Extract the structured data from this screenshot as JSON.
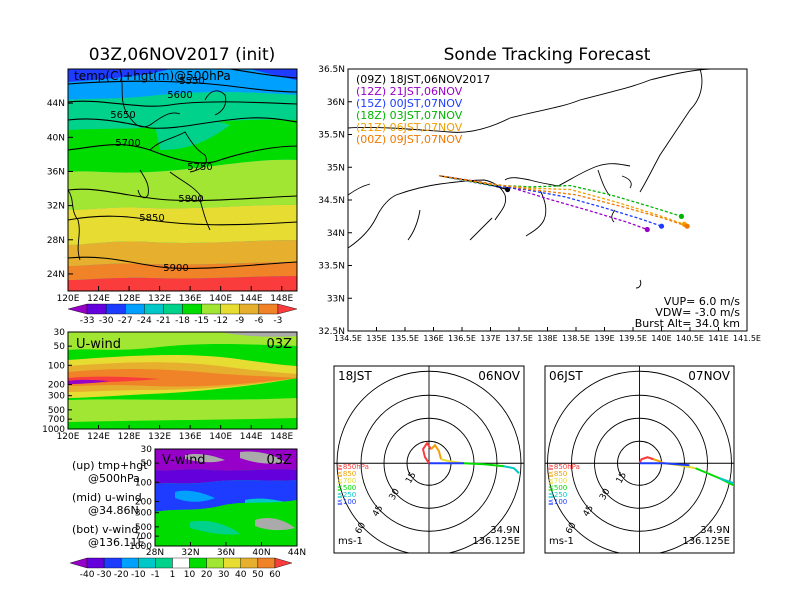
{
  "left_title": "03Z,06NOV2017 (init)",
  "right_title": "Sonde Tracking Forecast",
  "top_map": {
    "label": "temp(C)+hgt(m)@500hPa",
    "lon_ticks": [
      "120E",
      "124E",
      "128E",
      "132E",
      "136E",
      "140E",
      "144E",
      "148E"
    ],
    "lat_ticks": [
      "44N",
      "40N",
      "36N",
      "32N",
      "28N",
      "24N"
    ],
    "contours": [
      "5550",
      "5600",
      "5650",
      "5700",
      "5750",
      "5800",
      "5850",
      "5900"
    ],
    "colorbar": [
      "-33",
      "-30",
      "-27",
      "-24",
      "-21",
      "-18",
      "-15",
      "-12",
      "-9",
      "-6",
      "-3"
    ]
  },
  "uwind": {
    "label": "U-wind",
    "time": "03Z",
    "p_ticks": [
      "30",
      "50",
      "100",
      "200",
      "300",
      "500",
      "700",
      "1000"
    ],
    "lon_ticks": [
      "120E",
      "124E",
      "128E",
      "132E",
      "136E",
      "140E",
      "144E",
      "148E"
    ]
  },
  "vwind": {
    "label": "V-wind",
    "time": "03Z",
    "p_ticks": [
      "30",
      "50",
      "100",
      "200",
      "300",
      "500",
      "700",
      "1000"
    ],
    "lat_ticks": [
      "28N",
      "32N",
      "36N",
      "40N",
      "44N"
    ]
  },
  "legend_text": {
    "up1": "(up) tmp+hgt",
    "up2": "@500hPa",
    "mid1": "(mid) u-wind",
    "mid2": "@34.86N",
    "bot1": "(bot) v-wind",
    "bot2": "@136.11E"
  },
  "wind_colorbar": [
    "-40",
    "-30",
    "-20",
    "-10",
    "-1",
    "1",
    "10",
    "20",
    "30",
    "40",
    "50",
    "60"
  ],
  "track_map": {
    "lon_ticks": [
      "134.5E",
      "135E",
      "135.5E",
      "136E",
      "136.5E",
      "137E",
      "137.5E",
      "138E",
      "138.5E",
      "139E",
      "139.5E",
      "140E",
      "140.5E",
      "141E",
      "141.5E"
    ],
    "lat_ticks": [
      "36.5N",
      "36N",
      "35.5N",
      "35N",
      "34.5N",
      "34N",
      "33.5N",
      "33N",
      "32.5N"
    ],
    "legend": [
      {
        "text": "(09Z)  18JST,06NOV2017",
        "color": "#000000"
      },
      {
        "text": "(12Z)  21JST,06NOV",
        "color": "#9b00c8"
      },
      {
        "text": "(15Z)  00JST,07NOV",
        "color": "#1e3cff"
      },
      {
        "text": "(18Z)  03JST,07NOV",
        "color": "#00b400"
      },
      {
        "text": "(21Z)  06JST,07NOV",
        "color": "#f0a000"
      },
      {
        "text": "(00Z)  09JST,07NOV",
        "color": "#f07800"
      }
    ],
    "info": [
      "VUP=  6.0  m/s",
      "VDW=  -3.0  m/s",
      "Burst Alt=  34.0  km"
    ]
  },
  "hodo_left": {
    "time": "18JST",
    "date": "06NOV",
    "lat": "34.9N",
    "lon": "136.125E",
    "unit": "ms-1",
    "rings": [
      "15",
      "30",
      "45",
      "60"
    ],
    "levels": [
      "≧850hPa",
      "≦850",
      "≦700",
      "≦500",
      "≦250",
      "≦100"
    ]
  },
  "hodo_right": {
    "time": "06JST",
    "date": "07NOV",
    "lat": "34.9N",
    "lon": "136.125E",
    "unit": "ms-1",
    "rings": [
      "15",
      "30",
      "45",
      "60"
    ],
    "levels": [
      "≧850hPa",
      "≦850",
      "≦700",
      "≦500",
      "≦250",
      "≦100"
    ]
  },
  "chart_data": [
    {
      "type": "heatmap",
      "title": "03Z,06NOV2017 (init)",
      "label": "temp(C)+hgt(m)@500hPa",
      "xlim": [
        120,
        150
      ],
      "ylim": [
        22,
        48
      ],
      "contour_levels": [
        5550,
        5600,
        5650,
        5700,
        5750,
        5800,
        5850,
        5900
      ],
      "colorbar_levels": [
        -33,
        -30,
        -27,
        -24,
        -21,
        -18,
        -15,
        -12,
        -9,
        -6,
        -3
      ],
      "colors": [
        "#9600c8",
        "#6400dc",
        "#1e3cff",
        "#00a0ff",
        "#00c8c8",
        "#00d28c",
        "#00dc00",
        "#a0e632",
        "#e6dc32",
        "#e6af2d",
        "#f08228",
        "#fa3c3c"
      ]
    },
    {
      "type": "heatmap",
      "label": "U-wind",
      "xlim": [
        120,
        150
      ],
      "p_levels": [
        30,
        50,
        100,
        200,
        300,
        500,
        700,
        1000
      ]
    },
    {
      "type": "heatmap",
      "label": "V-wind",
      "xlim": [
        28,
        44
      ],
      "p_levels": [
        30,
        50,
        100,
        200,
        300,
        500,
        700,
        1000
      ],
      "colorbar_levels": [
        -40,
        -30,
        -20,
        -10,
        -1,
        1,
        10,
        20,
        30,
        40,
        50,
        60
      ]
    },
    {
      "type": "line",
      "title": "Sonde Tracking Forecast",
      "xlim": [
        134.5,
        141.5
      ],
      "ylim": [
        32.5,
        36.5
      ],
      "series": [
        {
          "name": "(09Z)  18JST,06NOV2017",
          "color": "#000000",
          "x": [
            136.1,
            136.6,
            137.0,
            137.3
          ],
          "y": [
            34.87,
            34.8,
            34.73,
            34.66
          ]
        },
        {
          "name": "(12Z)  21JST,06NOV",
          "color": "#9b00c8",
          "x": [
            136.1,
            136.8,
            137.4,
            138.0,
            138.8,
            139.4,
            139.75
          ],
          "y": [
            34.87,
            34.78,
            34.68,
            34.52,
            34.32,
            34.16,
            34.05
          ]
        },
        {
          "name": "(15Z)  00JST,07NOV",
          "color": "#1e3cff",
          "x": [
            136.1,
            137.0,
            137.6,
            138.3,
            139.0,
            139.6,
            140.0
          ],
          "y": [
            34.87,
            34.72,
            34.66,
            34.55,
            34.38,
            34.22,
            34.1
          ]
        },
        {
          "name": "(18Z)  03JST,07NOV",
          "color": "#00b400",
          "x": [
            136.1,
            137.0,
            137.7,
            138.4,
            139.1,
            139.8,
            140.35
          ],
          "y": [
            34.87,
            34.73,
            34.7,
            34.72,
            34.58,
            34.4,
            34.25
          ]
        },
        {
          "name": "(21Z)  06JST,07NOV",
          "color": "#f0a000",
          "x": [
            136.1,
            137.0,
            137.7,
            138.4,
            139.2,
            139.9,
            140.4
          ],
          "y": [
            34.87,
            34.74,
            34.68,
            34.66,
            34.47,
            34.28,
            34.13
          ]
        },
        {
          "name": "(00Z)  09JST,07NOV",
          "color": "#f07800",
          "x": [
            136.1,
            137.0,
            137.7,
            138.5,
            139.3,
            140.0,
            140.45
          ],
          "y": [
            34.87,
            34.75,
            34.66,
            34.58,
            34.4,
            34.23,
            34.1
          ]
        }
      ]
    }
  ]
}
